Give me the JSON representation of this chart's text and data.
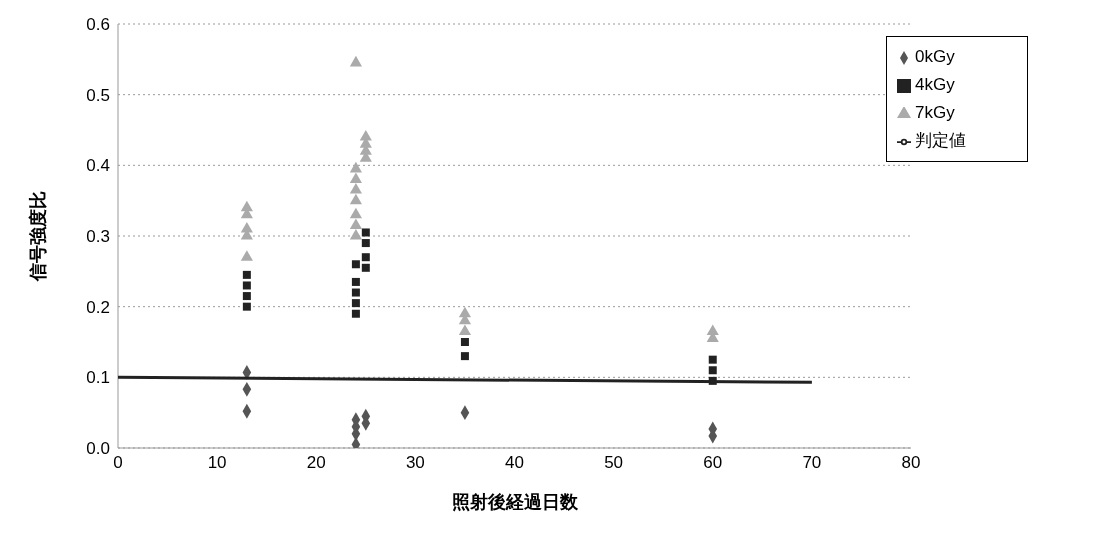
{
  "chart_data": {
    "type": "scatter",
    "xlabel": "照射後経過日数",
    "ylabel": "信号強度比",
    "xlim": [
      0,
      80
    ],
    "xticks": [
      0,
      10,
      20,
      30,
      40,
      50,
      60,
      70,
      80
    ],
    "ylim": [
      0,
      0.6
    ],
    "yticks": [
      {
        "value": 0,
        "label": "0.0"
      },
      0.1,
      0.2,
      0.3,
      0.4,
      0.5,
      0.6
    ],
    "grid": "y",
    "legend": "top right",
    "series": [
      {
        "name": "0kGy",
        "color": "#555555",
        "marker": "diamond",
        "x": [
          13,
          13,
          13,
          24,
          24,
          24,
          24,
          25,
          25,
          35,
          60,
          60
        ],
        "values": [
          0.107,
          0.083,
          0.052,
          0.005,
          0.02,
          0.03,
          0.04,
          0.045,
          0.035,
          0.05,
          0.017,
          0.027
        ]
      },
      {
        "name": "4kGy",
        "color": "#222222",
        "marker": "square",
        "x": [
          13,
          13,
          13,
          13,
          24,
          24,
          24,
          24,
          24,
          25,
          25,
          25,
          25,
          35,
          35,
          60,
          60,
          60
        ],
        "values": [
          0.2,
          0.215,
          0.23,
          0.245,
          0.19,
          0.205,
          0.22,
          0.235,
          0.26,
          0.255,
          0.27,
          0.29,
          0.305,
          0.13,
          0.15,
          0.095,
          0.11,
          0.125
        ]
      },
      {
        "name": "7kGy",
        "color": "#aaaaaa",
        "marker": "triangle",
        "x": [
          13,
          13,
          13,
          13,
          13,
          24,
          24,
          24,
          24,
          24,
          24,
          24,
          24,
          25,
          25,
          25,
          25,
          35,
          35,
          35,
          60,
          60
        ],
        "values": [
          0.27,
          0.3,
          0.31,
          0.33,
          0.34,
          0.3,
          0.315,
          0.33,
          0.35,
          0.365,
          0.38,
          0.395,
          0.545,
          0.41,
          0.42,
          0.43,
          0.44,
          0.165,
          0.18,
          0.19,
          0.155,
          0.165
        ]
      },
      {
        "name": "判定値",
        "type": "line",
        "color": "#222222",
        "marker": "none",
        "line_style": "solid",
        "x": [
          0,
          70
        ],
        "values": [
          0.1,
          0.093
        ]
      }
    ]
  }
}
